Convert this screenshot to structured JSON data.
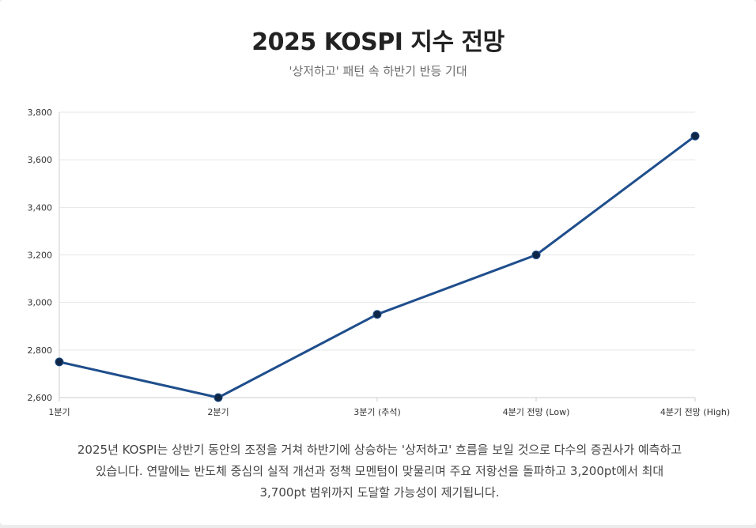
{
  "header": {
    "title": "2025 KOSPI 지수 전망",
    "subtitle": "'상저하고' 패턴 속 하반기 반등 기대"
  },
  "chart_data": {
    "type": "line",
    "categories": [
      "1분기",
      "2분기",
      "3분기 (추석)",
      "4분기 전망 (Low)",
      "4분기 전망 (High)"
    ],
    "series": [
      {
        "name": "KOSPI",
        "values": [
          2750,
          2600,
          2950,
          3200,
          3700
        ]
      }
    ],
    "ylim": [
      2600,
      3800
    ],
    "yticks": [
      2600,
      2800,
      3000,
      3200,
      3400,
      3600,
      3800
    ],
    "grid": true,
    "legend": "none",
    "xlabel": "",
    "ylabel": "",
    "colors": {
      "line": "#1f4e8c",
      "point": "#0f2747",
      "grid": "#e6e6e6",
      "axis": "#cccccc"
    }
  },
  "description": "2025년 KOSPI는 상반기 동안의 조정을 거쳐 하반기에 상승하는 '상저하고' 흐름을 보일 것으로 다수의 증권사가 예측하고 있습니다. 연말에는 반도체 중심의 실적 개선과 정책 모멘텀이 맞물리며 주요 저항선을 돌파하고 3,200pt에서 최대 3,700pt 범위까지 도달할 가능성이 제기됩니다."
}
